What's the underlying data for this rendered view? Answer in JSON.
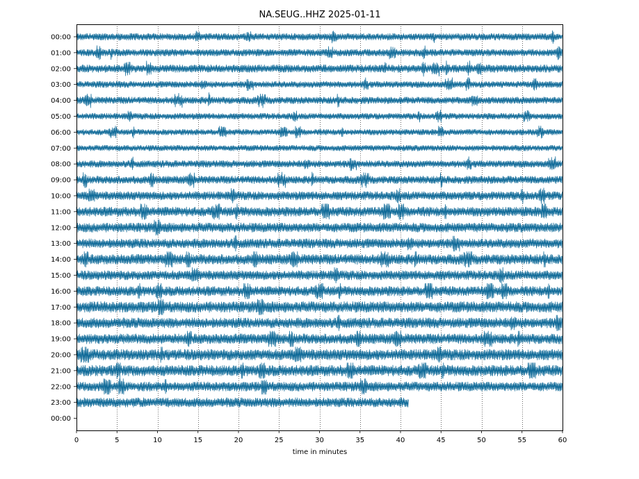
{
  "chart_data": {
    "type": "line",
    "title": "NA.SEUG..HHZ 2025-01-11",
    "xlabel": "time in minutes",
    "ylabel": "",
    "xlim": [
      0,
      60
    ],
    "xticks": [
      0,
      5,
      10,
      15,
      20,
      25,
      30,
      35,
      40,
      45,
      50,
      55,
      60
    ],
    "y_tick_labels": [
      "00:00",
      "01:00",
      "02:00",
      "03:00",
      "04:00",
      "05:00",
      "06:00",
      "07:00",
      "08:00",
      "09:00",
      "10:00",
      "11:00",
      "12:00",
      "13:00",
      "14:00",
      "15:00",
      "16:00",
      "17:00",
      "18:00",
      "19:00",
      "20:00",
      "21:00",
      "22:00",
      "23:00",
      "00:00"
    ],
    "grid": "vertical dotted at x ticks",
    "trace_color": "#0a6796",
    "traces": [
      {
        "hour": "00:00",
        "end_minute": 60,
        "amplitude": 0.45
      },
      {
        "hour": "01:00",
        "end_minute": 60,
        "amplitude": 0.45
      },
      {
        "hour": "02:00",
        "end_minute": 60,
        "amplitude": 0.5
      },
      {
        "hour": "03:00",
        "end_minute": 60,
        "amplitude": 0.42
      },
      {
        "hour": "04:00",
        "end_minute": 60,
        "amplitude": 0.45
      },
      {
        "hour": "05:00",
        "end_minute": 60,
        "amplitude": 0.4
      },
      {
        "hour": "06:00",
        "end_minute": 60,
        "amplitude": 0.38
      },
      {
        "hour": "07:00",
        "end_minute": 60,
        "amplitude": 0.38
      },
      {
        "hour": "08:00",
        "end_minute": 60,
        "amplitude": 0.45
      },
      {
        "hour": "09:00",
        "end_minute": 60,
        "amplitude": 0.5
      },
      {
        "hour": "10:00",
        "end_minute": 60,
        "amplitude": 0.55
      },
      {
        "hour": "11:00",
        "end_minute": 60,
        "amplitude": 0.6
      },
      {
        "hour": "12:00",
        "end_minute": 60,
        "amplitude": 0.6
      },
      {
        "hour": "13:00",
        "end_minute": 60,
        "amplitude": 0.6
      },
      {
        "hour": "14:00",
        "end_minute": 60,
        "amplitude": 0.65
      },
      {
        "hour": "15:00",
        "end_minute": 60,
        "amplitude": 0.6
      },
      {
        "hour": "16:00",
        "end_minute": 60,
        "amplitude": 0.62
      },
      {
        "hour": "17:00",
        "end_minute": 60,
        "amplitude": 0.7
      },
      {
        "hour": "18:00",
        "end_minute": 60,
        "amplitude": 0.65
      },
      {
        "hour": "19:00",
        "end_minute": 60,
        "amplitude": 0.65
      },
      {
        "hour": "20:00",
        "end_minute": 60,
        "amplitude": 0.7
      },
      {
        "hour": "21:00",
        "end_minute": 60,
        "amplitude": 0.7
      },
      {
        "hour": "22:00",
        "end_minute": 60,
        "amplitude": 0.6
      },
      {
        "hour": "23:00",
        "end_minute": 41,
        "amplitude": 0.6
      }
    ]
  }
}
